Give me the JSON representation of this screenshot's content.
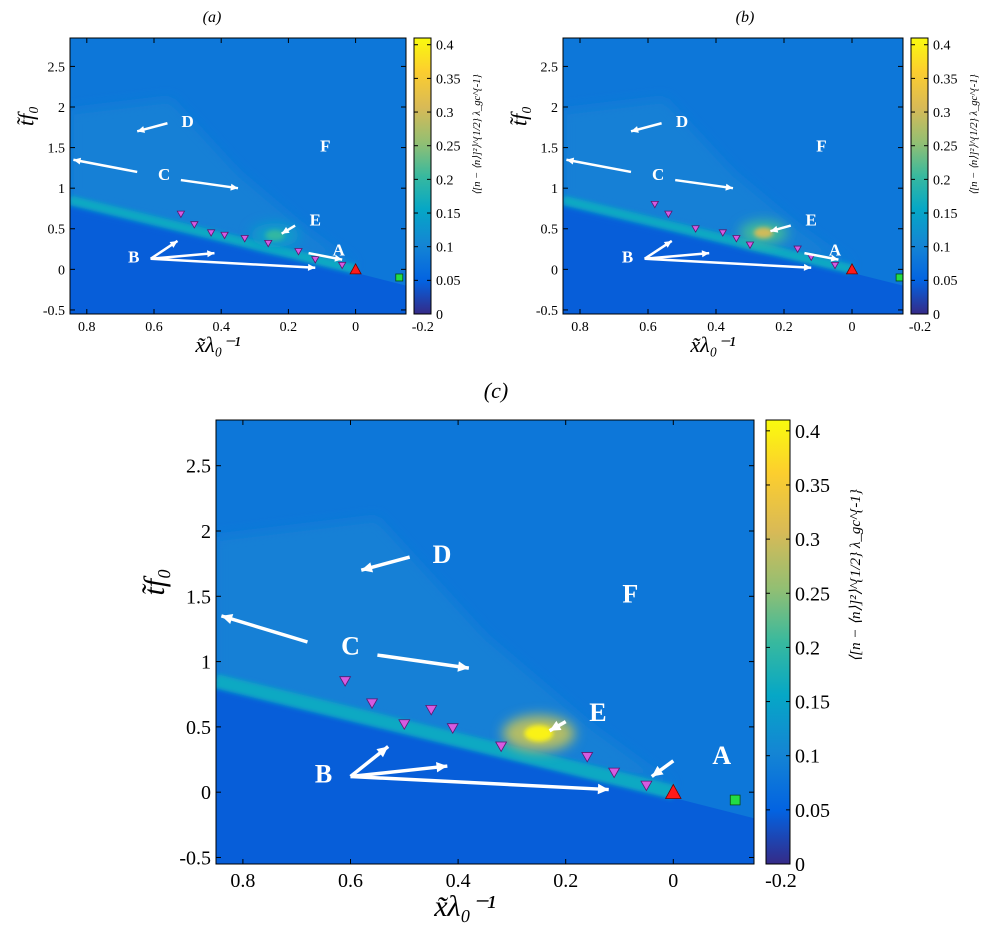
{
  "chart_data": [
    {
      "panel": "(a)",
      "type": "heatmap",
      "xlabel": "x̃λ₀⁻¹",
      "ylabel": "t̃f₀",
      "colorbar_label": "⟨[n − ⟨n⟩]²⟩^{1/2} λ_gc^{-1}",
      "xlim": [
        0.85,
        -0.15
      ],
      "ylim": [
        -0.55,
        2.85
      ],
      "xticks": [
        "0.8",
        "0.6",
        "0.4",
        "0.2",
        "0",
        "-0.2"
      ],
      "yticks": [
        "-0.5",
        "0",
        "0.5",
        "1",
        "1.5",
        "2",
        "2.5"
      ],
      "colorbar_range": [
        0,
        0.41
      ],
      "colorbar_ticks": [
        "0",
        "0.05",
        "0.1",
        "0.15",
        "0.2",
        "0.25",
        "0.3",
        "0.35",
        "0.4"
      ],
      "hotspot": {
        "x": 0.24,
        "y": 0.42,
        "value": 0.2
      },
      "markers_triangle_down": [
        {
          "x": 0.52,
          "y": 0.68
        },
        {
          "x": 0.48,
          "y": 0.55
        },
        {
          "x": 0.43,
          "y": 0.45
        },
        {
          "x": 0.39,
          "y": 0.42
        },
        {
          "x": 0.33,
          "y": 0.38
        },
        {
          "x": 0.26,
          "y": 0.32
        },
        {
          "x": 0.17,
          "y": 0.22
        },
        {
          "x": 0.12,
          "y": 0.12
        },
        {
          "x": 0.04,
          "y": 0.05
        }
      ],
      "marker_red_triangle": {
        "x": 0.0,
        "y": 0.0
      },
      "marker_green_square": {
        "x": -0.13,
        "y": -0.1
      },
      "annotations": [
        {
          "label": "A",
          "x": 0.05,
          "y": 0.22
        },
        {
          "label": "B",
          "x": 0.66,
          "y": 0.13
        },
        {
          "label": "C",
          "x": 0.57,
          "y": 1.15
        },
        {
          "label": "D",
          "x": 0.5,
          "y": 1.8
        },
        {
          "label": "E",
          "x": 0.12,
          "y": 0.59
        },
        {
          "label": "F",
          "x": 0.09,
          "y": 1.5
        }
      ]
    },
    {
      "panel": "(b)",
      "type": "heatmap",
      "xlabel": "x̃λ₀⁻¹",
      "ylabel": "t̃f₀",
      "colorbar_label": "⟨[n − ⟨n⟩]²⟩^{1/2} λ_gc^{-1}",
      "xlim": [
        0.85,
        -0.15
      ],
      "ylim": [
        -0.55,
        2.85
      ],
      "xticks": [
        "0.8",
        "0.6",
        "0.4",
        "0.2",
        "0",
        "-0.2"
      ],
      "yticks": [
        "-0.5",
        "0",
        "0.5",
        "1",
        "1.5",
        "2",
        "2.5"
      ],
      "colorbar_range": [
        0,
        0.41
      ],
      "colorbar_ticks": [
        "0",
        "0.05",
        "0.1",
        "0.15",
        "0.2",
        "0.25",
        "0.3",
        "0.35",
        "0.4"
      ],
      "hotspot": {
        "x": 0.26,
        "y": 0.45,
        "value": 0.3
      },
      "markers_triangle_down": [
        {
          "x": 0.58,
          "y": 0.8
        },
        {
          "x": 0.54,
          "y": 0.68
        },
        {
          "x": 0.46,
          "y": 0.5
        },
        {
          "x": 0.38,
          "y": 0.45
        },
        {
          "x": 0.34,
          "y": 0.38
        },
        {
          "x": 0.3,
          "y": 0.3
        },
        {
          "x": 0.16,
          "y": 0.25
        },
        {
          "x": 0.12,
          "y": 0.15
        },
        {
          "x": 0.05,
          "y": 0.05
        }
      ],
      "marker_red_triangle": {
        "x": 0.0,
        "y": 0.0
      },
      "marker_green_square": {
        "x": -0.14,
        "y": -0.1
      },
      "annotations": [
        {
          "label": "A",
          "x": 0.05,
          "y": 0.22
        },
        {
          "label": "B",
          "x": 0.66,
          "y": 0.13
        },
        {
          "label": "C",
          "x": 0.57,
          "y": 1.15
        },
        {
          "label": "D",
          "x": 0.5,
          "y": 1.8
        },
        {
          "label": "E",
          "x": 0.12,
          "y": 0.59
        },
        {
          "label": "F",
          "x": 0.09,
          "y": 1.5
        }
      ]
    },
    {
      "panel": "(c)",
      "type": "heatmap",
      "xlabel": "x̃λ₀⁻¹",
      "ylabel": "t̃f₀",
      "colorbar_label": "⟨[n − ⟨n⟩]²⟩^{1/2} λ_gc^{-1}",
      "xlim": [
        0.85,
        -0.15
      ],
      "ylim": [
        -0.55,
        2.85
      ],
      "xticks": [
        "0.8",
        "0.6",
        "0.4",
        "0.2",
        "0",
        "-0.2"
      ],
      "yticks": [
        "-0.5",
        "0",
        "0.5",
        "1",
        "1.5",
        "2",
        "2.5"
      ],
      "colorbar_range": [
        0,
        0.41
      ],
      "colorbar_ticks": [
        "0",
        "0.05",
        "0.1",
        "0.15",
        "0.2",
        "0.25",
        "0.3",
        "0.35",
        "0.4"
      ],
      "hotspot": {
        "x": 0.25,
        "y": 0.45,
        "value": 0.4
      },
      "markers_triangle_down": [
        {
          "x": 0.61,
          "y": 0.85
        },
        {
          "x": 0.56,
          "y": 0.68
        },
        {
          "x": 0.5,
          "y": 0.52
        },
        {
          "x": 0.45,
          "y": 0.63
        },
        {
          "x": 0.41,
          "y": 0.49
        },
        {
          "x": 0.32,
          "y": 0.35
        },
        {
          "x": 0.16,
          "y": 0.27
        },
        {
          "x": 0.11,
          "y": 0.15
        },
        {
          "x": 0.05,
          "y": 0.05
        }
      ],
      "marker_red_triangle": {
        "x": 0.0,
        "y": 0.0
      },
      "marker_green_square": {
        "x": -0.115,
        "y": -0.06
      },
      "annotations": [
        {
          "label": "A",
          "x": -0.09,
          "y": 0.26
        },
        {
          "label": "B",
          "x": 0.65,
          "y": 0.12
        },
        {
          "label": "C",
          "x": 0.6,
          "y": 1.1
        },
        {
          "label": "D",
          "x": 0.43,
          "y": 1.8
        },
        {
          "label": "E",
          "x": 0.14,
          "y": 0.59
        },
        {
          "label": "F",
          "x": 0.08,
          "y": 1.5
        }
      ]
    }
  ]
}
